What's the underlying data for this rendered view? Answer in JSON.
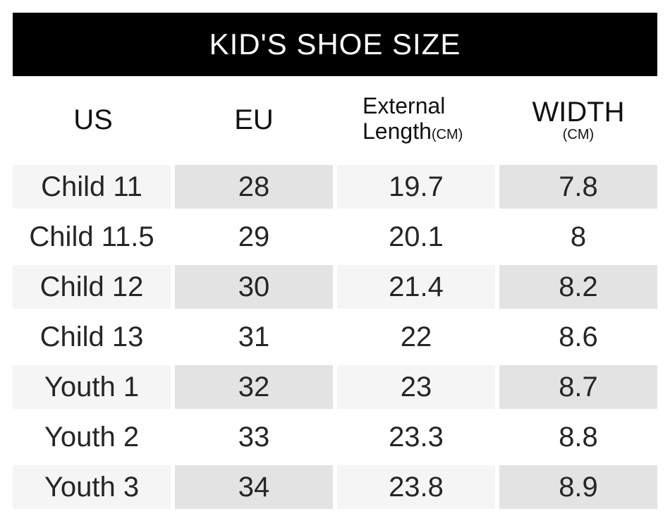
{
  "title": "KID'S SHOE SIZE",
  "headers": {
    "us": "US",
    "eu": "EU",
    "external_line1": "External",
    "external_line2": "Length",
    "external_unit": "(CM)",
    "width": "WIDTH",
    "width_unit": "(CM)"
  },
  "rows": [
    {
      "us": "Child 11",
      "eu": "28",
      "length": "19.7",
      "width": "7.8"
    },
    {
      "us": "Child 11.5",
      "eu": "29",
      "length": "20.1",
      "width": "8"
    },
    {
      "us": "Child 12",
      "eu": "30",
      "length": "21.4",
      "width": "8.2"
    },
    {
      "us": "Child 13",
      "eu": "31",
      "length": "22",
      "width": "8.6"
    },
    {
      "us": "Youth 1",
      "eu": "32",
      "length": "23",
      "width": "8.7"
    },
    {
      "us": "Youth 2",
      "eu": "33",
      "length": "23.3",
      "width": "8.8"
    },
    {
      "us": "Youth 3",
      "eu": "34",
      "length": "23.8",
      "width": "8.9"
    }
  ],
  "colors": {
    "title_bg": "#000000",
    "title_fg": "#ffffff",
    "cell_light": "#f5f5f5",
    "cell_dark": "#e3e3e3"
  }
}
